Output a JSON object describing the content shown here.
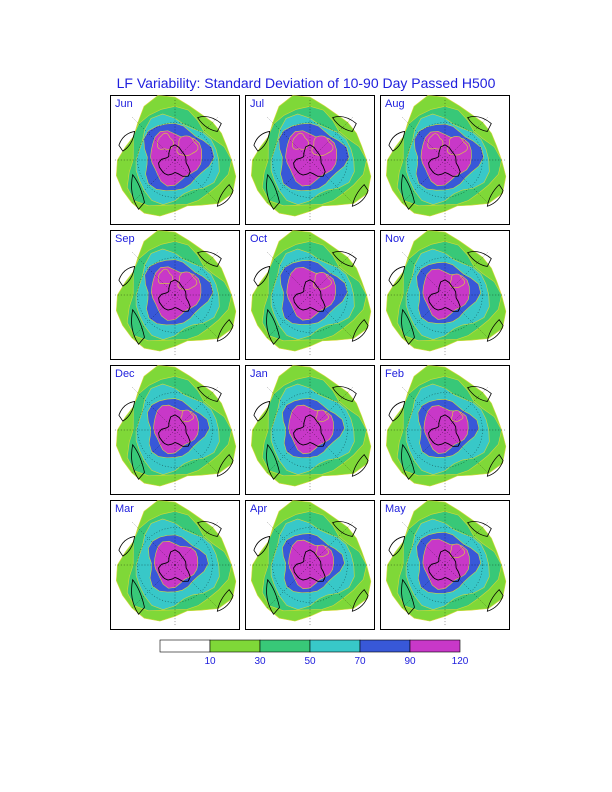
{
  "title": "LF Variability: Standard Deviation of 10-90 Day Passed H500",
  "title_color": "#2020dd",
  "title_fontsize": 14,
  "label_color": "#2020dd",
  "label_fontsize": 11,
  "background_color": "#ffffff",
  "border_color": "#000000",
  "panels": [
    {
      "label": "Jun",
      "high_intensity": 1.0
    },
    {
      "label": "Jul",
      "high_intensity": 1.0
    },
    {
      "label": "Aug",
      "high_intensity": 0.95
    },
    {
      "label": "Sep",
      "high_intensity": 0.9
    },
    {
      "label": "Oct",
      "high_intensity": 0.85
    },
    {
      "label": "Nov",
      "high_intensity": 0.7
    },
    {
      "label": "Dec",
      "high_intensity": 0.6
    },
    {
      "label": "Jan",
      "high_intensity": 0.6
    },
    {
      "label": "Feb",
      "high_intensity": 0.55
    },
    {
      "label": "Mar",
      "high_intensity": 0.5
    },
    {
      "label": "Apr",
      "high_intensity": 0.6
    },
    {
      "label": "May",
      "high_intensity": 0.7
    }
  ],
  "colormap": {
    "levels": [
      10,
      30,
      50,
      70,
      90,
      120
    ],
    "colors": [
      "#ffffff",
      "#7fd838",
      "#38c878",
      "#38c8c8",
      "#3858d8",
      "#c838c8"
    ],
    "contour_color": "#d8d838"
  },
  "grid": {
    "cols": 3,
    "rows": 4,
    "panel_size": 130,
    "gap": 5
  },
  "coastline_color": "#000000",
  "gridline_style": "dotted"
}
